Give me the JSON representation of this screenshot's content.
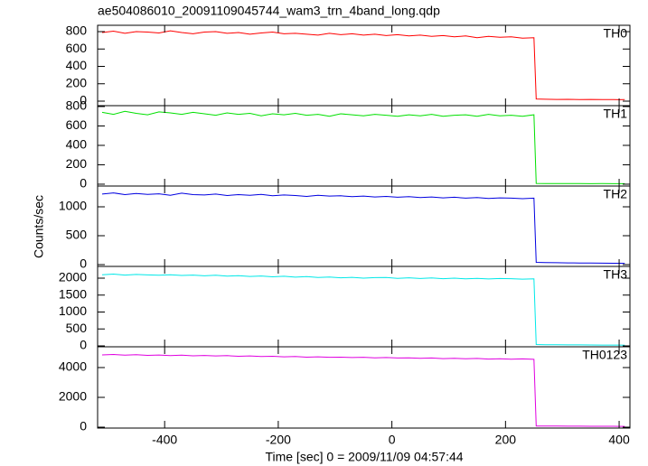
{
  "chart_data": {
    "type": "line",
    "title": "ae504086010_20091109045744_wam3_trn_4band_long.qdp",
    "xlabel": "Time [sec] 0 = 2009/11/09 04:57:44",
    "ylabel": "Counts/sec",
    "xlim": [
      -518,
      419
    ],
    "xticks": [
      -400,
      -200,
      0,
      200,
      400
    ],
    "x": [
      -510,
      -490,
      -470,
      -450,
      -430,
      -410,
      -390,
      -370,
      -350,
      -330,
      -310,
      -290,
      -270,
      -250,
      -230,
      -210,
      -190,
      -170,
      -150,
      -130,
      -110,
      -90,
      -70,
      -50,
      -30,
      -10,
      10,
      30,
      50,
      70,
      90,
      110,
      130,
      150,
      170,
      190,
      210,
      230,
      250,
      254,
      270,
      290,
      310,
      330,
      350,
      370,
      390,
      400,
      410
    ],
    "panels": [
      {
        "name": "TH0",
        "color": "#ff0000",
        "ylim": [
          -52,
          873
        ],
        "yticks": [
          0,
          200,
          400,
          600,
          800
        ],
        "values": [
          790,
          805,
          780,
          800,
          795,
          785,
          810,
          790,
          775,
          795,
          800,
          780,
          790,
          770,
          785,
          795,
          775,
          780,
          770,
          760,
          780,
          765,
          775,
          760,
          770,
          755,
          765,
          750,
          760,
          745,
          755,
          740,
          750,
          730,
          745,
          735,
          740,
          725,
          730,
          25,
          22,
          20,
          21,
          19,
          20,
          18,
          19,
          17,
          18
        ]
      },
      {
        "name": "TH1",
        "color": "#00e000",
        "ylim": [
          -19,
          809
        ],
        "yticks": [
          0,
          200,
          400,
          600,
          800
        ],
        "values": [
          740,
          720,
          750,
          730,
          715,
          745,
          735,
          720,
          740,
          725,
          710,
          735,
          720,
          730,
          705,
          725,
          715,
          730,
          710,
          720,
          700,
          725,
          715,
          705,
          720,
          710,
          700,
          715,
          705,
          720,
          700,
          710,
          715,
          700,
          720,
          705,
          710,
          700,
          715,
          8,
          7,
          7,
          6,
          6,
          5,
          6,
          5,
          5,
          5
        ]
      },
      {
        "name": "TH2",
        "color": "#0000e0",
        "ylim": [
          -31,
          1359
        ],
        "yticks": [
          0,
          500,
          1000
        ],
        "values": [
          1220,
          1240,
          1210,
          1230,
          1215,
          1225,
          1200,
          1235,
          1210,
          1205,
          1220,
          1195,
          1210,
          1200,
          1215,
          1190,
          1205,
          1195,
          1180,
          1200,
          1185,
          1190,
          1175,
          1185,
          1170,
          1180,
          1165,
          1175,
          1160,
          1170,
          1155,
          1165,
          1150,
          1160,
          1145,
          1155,
          1150,
          1140,
          1150,
          40,
          35,
          33,
          30,
          28,
          27,
          25,
          24,
          23,
          22
        ]
      },
      {
        "name": "TH3",
        "color": "#00e8e8",
        "ylim": [
          -27,
          2347
        ],
        "yticks": [
          0,
          500,
          1000,
          1500,
          2000
        ],
        "values": [
          2100,
          2120,
          2090,
          2110,
          2095,
          2085,
          2100,
          2080,
          2090,
          2070,
          2085,
          2060,
          2075,
          2050,
          2065,
          2040,
          2055,
          2030,
          2045,
          2020,
          2035,
          2010,
          2025,
          2000,
          2015,
          2020,
          1995,
          2010,
          1990,
          2005,
          1985,
          2000,
          1980,
          1995,
          1975,
          1990,
          1985,
          1970,
          1980,
          40,
          35,
          33,
          30,
          28,
          27,
          25,
          24,
          23,
          22
        ]
      },
      {
        "name": "TH0123",
        "color": "#e000e0",
        "ylim": [
          -61,
          5394
        ],
        "yticks": [
          0,
          2000,
          4000
        ],
        "values": [
          4850,
          4880,
          4830,
          4860,
          4820,
          4840,
          4800,
          4830,
          4790,
          4810,
          4780,
          4800,
          4760,
          4780,
          4740,
          4760,
          4720,
          4740,
          4700,
          4720,
          4690,
          4700,
          4670,
          4690,
          4650,
          4670,
          4640,
          4650,
          4620,
          4640,
          4600,
          4620,
          4590,
          4610,
          4570,
          4590,
          4560,
          4580,
          4550,
          80,
          75,
          70,
          68,
          65,
          62,
          60,
          58,
          56,
          55
        ]
      }
    ]
  }
}
